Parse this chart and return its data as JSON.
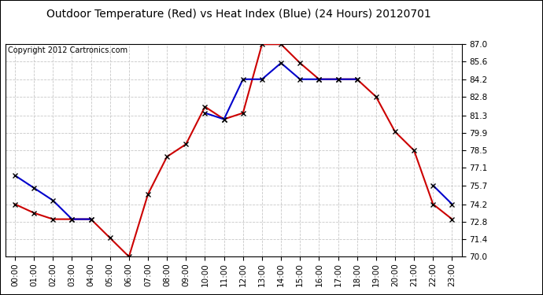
{
  "title": "Outdoor Temperature (Red) vs Heat Index (Blue) (24 Hours) 20120701",
  "copyright": "Copyright 2012 Cartronics.com",
  "hours": [
    0,
    1,
    2,
    3,
    4,
    5,
    6,
    7,
    8,
    9,
    10,
    11,
    12,
    13,
    14,
    15,
    16,
    17,
    18,
    19,
    20,
    21,
    22,
    23
  ],
  "red_temp": [
    74.2,
    73.5,
    73.0,
    73.0,
    73.0,
    71.5,
    70.0,
    75.0,
    78.0,
    79.0,
    82.0,
    81.0,
    81.5,
    87.0,
    87.0,
    85.5,
    84.2,
    84.2,
    84.2,
    82.8,
    80.0,
    78.5,
    74.2,
    73.0
  ],
  "blue_temp": [
    76.5,
    75.5,
    74.5,
    73.0,
    73.0,
    null,
    null,
    null,
    null,
    null,
    81.5,
    81.0,
    84.2,
    84.2,
    85.5,
    84.2,
    84.2,
    84.2,
    84.2,
    null,
    null,
    null,
    75.7,
    74.2
  ],
  "ylim": [
    70.0,
    87.0
  ],
  "yticks": [
    70.0,
    71.4,
    72.8,
    74.2,
    75.7,
    77.1,
    78.5,
    79.9,
    81.3,
    82.8,
    84.2,
    85.6,
    87.0
  ],
  "bg_color": "#ffffff",
  "plot_bg_color": "#ffffff",
  "grid_color": "#c8c8c8",
  "red_color": "#cc0000",
  "blue_color": "#0000cc",
  "title_color": "#000000",
  "copyright_color": "#000000",
  "marker": "x",
  "marker_color": "#000000",
  "line_width": 1.5,
  "marker_size": 4,
  "title_fontsize": 10,
  "copyright_fontsize": 7,
  "tick_fontsize": 7.5,
  "border_color": "#000000"
}
